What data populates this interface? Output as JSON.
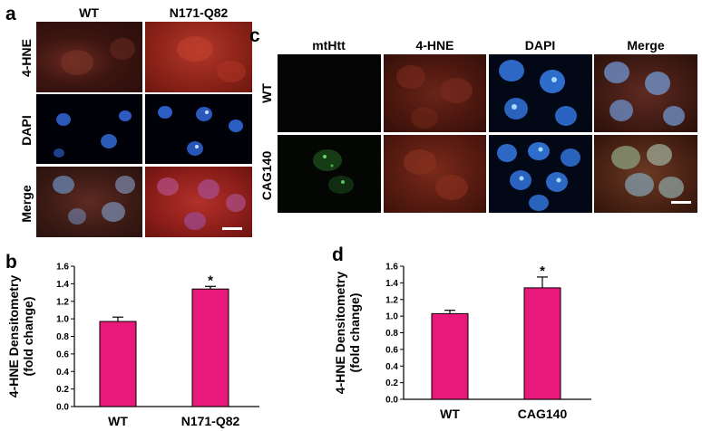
{
  "panel_a": {
    "letter": "a",
    "columns": [
      "WT",
      "N171-Q82"
    ],
    "rows": [
      "4-HNE",
      "DAPI",
      "Merge"
    ]
  },
  "panel_c": {
    "letter": "c",
    "columns": [
      "mtHtt",
      "4-HNE",
      "DAPI",
      "Merge"
    ],
    "rows": [
      "WT",
      "CAG140"
    ]
  },
  "panel_b": {
    "letter": "b"
  },
  "panel_d": {
    "letter": "d"
  },
  "chart_data": [
    {
      "type": "bar",
      "categories": [
        "WT",
        "N171-Q82"
      ],
      "values": [
        0.97,
        1.34
      ],
      "errors": [
        0.05,
        0.03
      ],
      "significance": [
        "",
        "*"
      ],
      "ylabel": "4-HNE Densitometry\n(fold change)",
      "ylim": [
        0,
        1.6
      ],
      "yticks": [
        "0.0",
        "0.2",
        "0.4",
        "0.6",
        "0.8",
        "1.0",
        "1.2",
        "1.4",
        "1.6"
      ],
      "bar_color": "#e8197a"
    },
    {
      "type": "bar",
      "categories": [
        "WT",
        "CAG140"
      ],
      "values": [
        1.03,
        1.34
      ],
      "errors": [
        0.04,
        0.13
      ],
      "significance": [
        "",
        "*"
      ],
      "ylabel": "4-HNE Densitometry\n(fold change)",
      "ylim": [
        0,
        1.6
      ],
      "yticks": [
        "0.0",
        "0.2",
        "0.4",
        "0.6",
        "0.8",
        "1.0",
        "1.2",
        "1.4",
        "1.6"
      ],
      "bar_color": "#e8197a"
    }
  ]
}
